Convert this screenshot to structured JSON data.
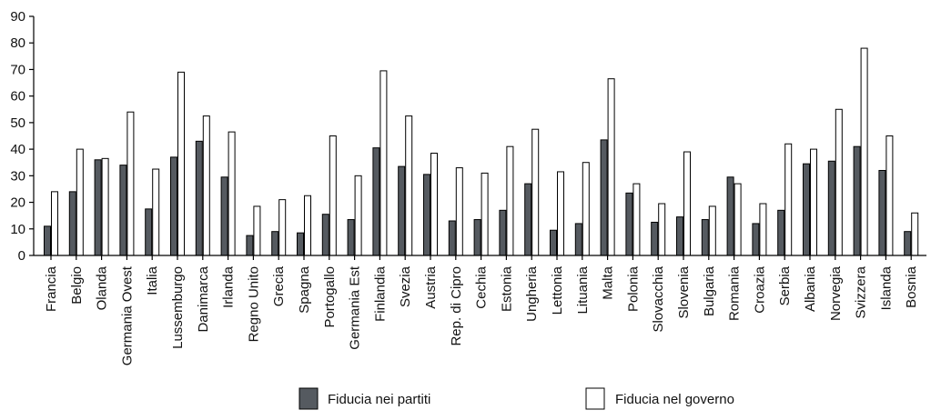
{
  "chart_data": {
    "type": "bar",
    "categories": [
      "Francia",
      "Belgio",
      "Olanda",
      "Germania Ovest",
      "Italia",
      "Lussemburgo",
      "Danimarca",
      "Irlanda",
      "Regno Unito",
      "Grecia",
      "Spagna",
      "Portogallo",
      "Germania Est",
      "Finlandia",
      "Svezia",
      "Austria",
      "Rep. di Cipro",
      "Cechia",
      "Estonia",
      "Ungheria",
      "Lettonia",
      "Lituania",
      "Malta",
      "Polonia",
      "Slovacchia",
      "Slovenia",
      "Bulgaria",
      "Romania",
      "Croazia",
      "Serbia",
      "Albania",
      "Norvegia",
      "Svizzera",
      "Islanda",
      "Bosnia"
    ],
    "series": [
      {
        "name": "Fiducia nei partiti",
        "color": "#555a60",
        "values": [
          11,
          24,
          36,
          34,
          17.5,
          37,
          43,
          29.5,
          7.5,
          9,
          8.5,
          15.5,
          13.5,
          40.5,
          33.5,
          30.5,
          13,
          13.5,
          17,
          27,
          9.5,
          12,
          43.5,
          23.5,
          12.5,
          14.5,
          13.5,
          29.5,
          12,
          17,
          34.5,
          35.5,
          41,
          32,
          9
        ]
      },
      {
        "name": "Fiducia nel governo",
        "color": "#ffffff",
        "values": [
          24,
          40,
          36.5,
          54,
          32.5,
          69,
          52.5,
          46.5,
          18.5,
          21,
          22.5,
          45,
          30,
          69.5,
          52.5,
          38.5,
          33,
          31,
          41,
          47.5,
          31.5,
          35,
          66.5,
          27,
          19.5,
          39,
          18.5,
          27,
          19.5,
          42,
          40,
          55,
          78,
          45,
          16
        ]
      }
    ],
    "yticks": [
      0,
      10,
      20,
      30,
      40,
      50,
      60,
      70,
      80,
      90
    ],
    "ylim": [
      0,
      90
    ],
    "legend_position": "bottom"
  }
}
